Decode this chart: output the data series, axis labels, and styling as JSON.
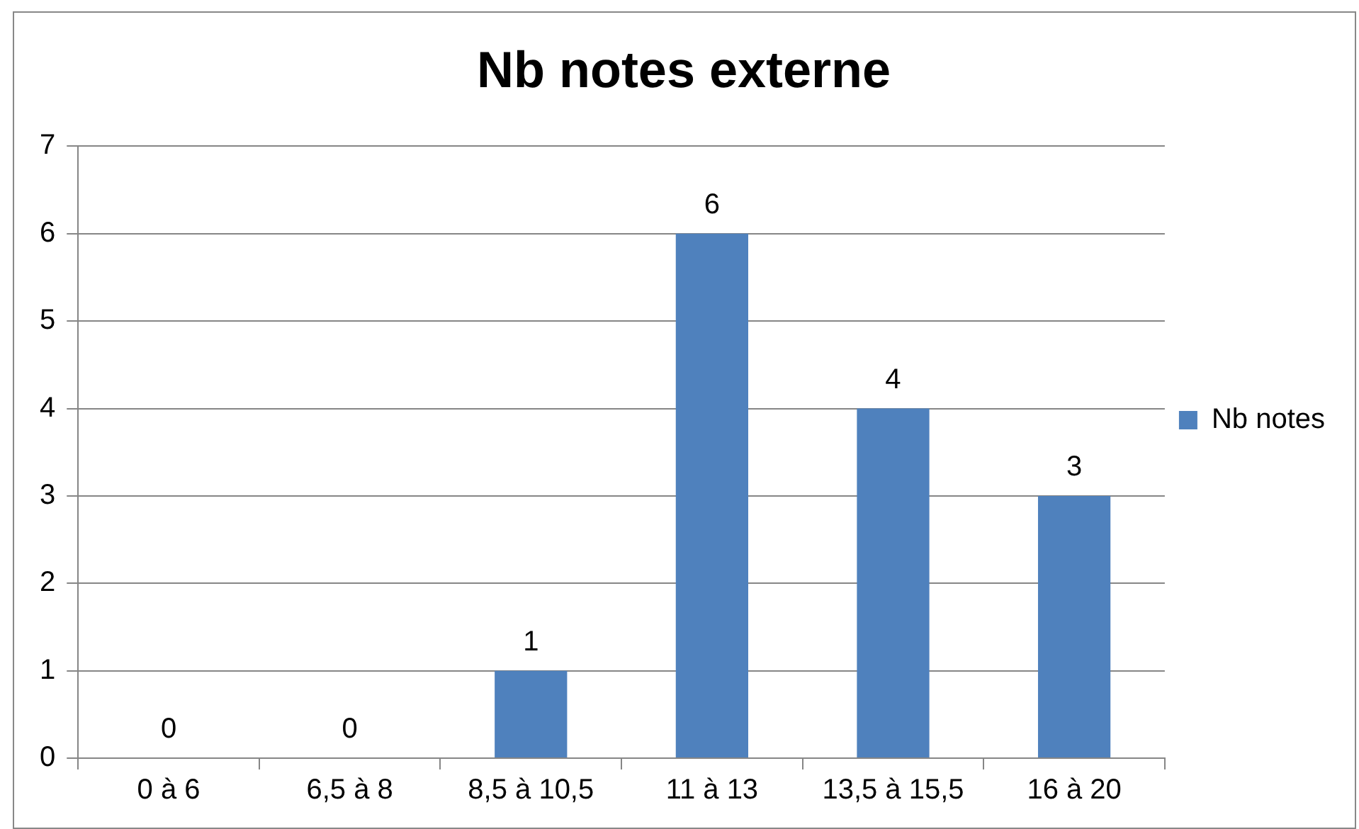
{
  "chart_data": {
    "type": "bar",
    "title": "Nb notes externe",
    "categories": [
      "0 à 6",
      "6,5 à 8",
      "8,5 à 10,5",
      "11 à 13",
      "13,5 à 15,5",
      "16 à 20"
    ],
    "series": [
      {
        "name": "Nb notes",
        "color": "#4f81bd",
        "values": [
          0,
          0,
          1,
          6,
          4,
          3
        ]
      }
    ],
    "ylim": [
      0,
      7
    ],
    "yticks": [
      0,
      1,
      2,
      3,
      4,
      5,
      6,
      7
    ],
    "grid": "y",
    "legend": "right",
    "data_labels": true
  }
}
